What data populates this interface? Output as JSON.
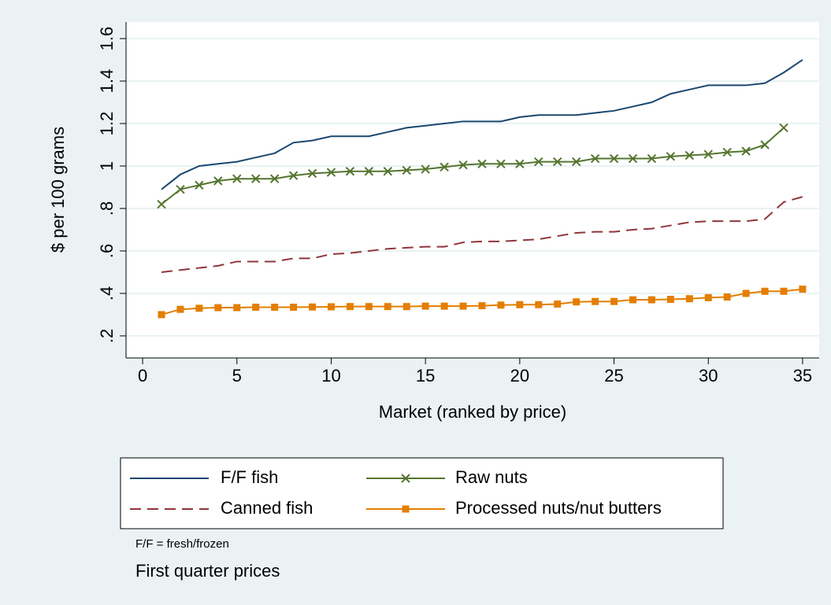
{
  "chart_data": {
    "type": "line",
    "y_axis_label": "$ per 100 grams",
    "x_axis_label": "Market (ranked by price)",
    "notes": [
      "F/F = fresh/frozen",
      "First quarter prices"
    ],
    "x": [
      1,
      2,
      3,
      4,
      5,
      6,
      7,
      8,
      9,
      10,
      11,
      12,
      13,
      14,
      15,
      16,
      17,
      18,
      19,
      20,
      21,
      22,
      23,
      24,
      25,
      26,
      27,
      28,
      29,
      30,
      31,
      32,
      33,
      34,
      35
    ],
    "xlim": [
      -0.88,
      35.88
    ],
    "xticks": [
      0,
      5,
      10,
      15,
      20,
      25,
      30,
      35
    ],
    "ylim": [
      0.096,
      1.678
    ],
    "yticks": [
      {
        "value": 0.2,
        "label": ".2"
      },
      {
        "value": 0.4,
        "label": ".4"
      },
      {
        "value": 0.6,
        "label": ".6"
      },
      {
        "value": 0.8,
        "label": ".8"
      },
      1,
      1.2,
      1.4,
      1.6
    ],
    "grid": true,
    "series": [
      {
        "name": "F/F fish",
        "color": "#1a476f",
        "marker": "none",
        "dash": false,
        "values": [
          0.89,
          0.96,
          1.0,
          1.01,
          1.02,
          1.04,
          1.06,
          1.11,
          1.12,
          1.14,
          1.14,
          1.14,
          1.16,
          1.18,
          1.19,
          1.2,
          1.21,
          1.21,
          1.21,
          1.23,
          1.24,
          1.24,
          1.24,
          1.25,
          1.26,
          1.28,
          1.3,
          1.34,
          1.36,
          1.38,
          1.38,
          1.38,
          1.39,
          1.44,
          1.5
        ]
      },
      {
        "name": "Raw nuts",
        "color": "#55752f",
        "marker": "x",
        "dash": false,
        "values": [
          0.82,
          0.89,
          0.91,
          0.93,
          0.94,
          0.94,
          0.94,
          0.955,
          0.965,
          0.97,
          0.975,
          0.975,
          0.975,
          0.98,
          0.985,
          0.995,
          1.005,
          1.01,
          1.01,
          1.01,
          1.02,
          1.02,
          1.02,
          1.035,
          1.035,
          1.035,
          1.035,
          1.045,
          1.05,
          1.055,
          1.065,
          1.07,
          1.1,
          1.18,
          null
        ]
      },
      {
        "name": "Canned fish",
        "color": "#90353b",
        "marker": "none",
        "dash": true,
        "values": [
          0.5,
          0.51,
          0.52,
          0.53,
          0.55,
          0.55,
          0.55,
          0.565,
          0.565,
          0.585,
          0.59,
          0.6,
          0.61,
          0.615,
          0.62,
          0.62,
          0.64,
          0.645,
          0.645,
          0.65,
          0.655,
          0.67,
          0.685,
          0.69,
          0.69,
          0.7,
          0.705,
          0.72,
          0.735,
          0.74,
          0.74,
          0.74,
          0.75,
          0.83,
          0.855
        ]
      },
      {
        "name": "Processed nuts/nut butters",
        "color": "#e37e00",
        "marker": "square",
        "dash": false,
        "values": [
          0.3,
          0.325,
          0.33,
          0.333,
          0.333,
          0.335,
          0.335,
          0.335,
          0.336,
          0.337,
          0.338,
          0.338,
          0.338,
          0.338,
          0.34,
          0.34,
          0.34,
          0.342,
          0.345,
          0.347,
          0.347,
          0.35,
          0.36,
          0.362,
          0.362,
          0.37,
          0.37,
          0.372,
          0.375,
          0.38,
          0.383,
          0.4,
          0.41,
          0.41,
          0.42
        ]
      }
    ]
  }
}
